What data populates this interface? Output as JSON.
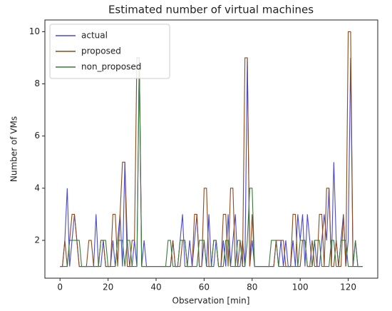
{
  "chart_data": {
    "type": "line",
    "title": "Estimated number of virtual machines",
    "xlabel": "Observation [min]",
    "ylabel": "Number of VMs",
    "x": [
      0,
      1,
      2,
      3,
      4,
      5,
      6,
      7,
      8,
      9,
      10,
      11,
      12,
      13,
      14,
      15,
      16,
      17,
      18,
      19,
      20,
      21,
      22,
      23,
      24,
      25,
      26,
      27,
      28,
      29,
      30,
      31,
      32,
      33,
      34,
      35,
      36,
      37,
      38,
      39,
      40,
      41,
      42,
      43,
      44,
      45,
      46,
      47,
      48,
      49,
      50,
      51,
      52,
      53,
      54,
      55,
      56,
      57,
      58,
      59,
      60,
      61,
      62,
      63,
      64,
      65,
      66,
      67,
      68,
      69,
      70,
      71,
      72,
      73,
      74,
      75,
      76,
      77,
      78,
      79,
      80,
      81,
      82,
      83,
      84,
      85,
      86,
      87,
      88,
      89,
      90,
      91,
      92,
      93,
      94,
      95,
      96,
      97,
      98,
      99,
      100,
      101,
      102,
      103,
      104,
      105,
      106,
      107,
      108,
      109,
      110,
      111,
      112,
      113,
      114,
      115,
      116,
      117,
      118,
      119,
      120,
      121,
      122,
      123,
      124,
      125,
      126
    ],
    "series": [
      {
        "name": "actual",
        "color": "#4a4ad0",
        "values": [
          1,
          1,
          2,
          4,
          1,
          2,
          3,
          2,
          1,
          1,
          1,
          1,
          1,
          1,
          1,
          3,
          1,
          1,
          2,
          1,
          1,
          1,
          2,
          1,
          2,
          3,
          1,
          5,
          2,
          1,
          1,
          2,
          1,
          9,
          1,
          2,
          1,
          1,
          1,
          1,
          1,
          1,
          1,
          1,
          1,
          1,
          1,
          2,
          1,
          1,
          2,
          3,
          1,
          1,
          2,
          1,
          2,
          3,
          1,
          1,
          2,
          1,
          3,
          1,
          1,
          2,
          1,
          1,
          2,
          1,
          3,
          1,
          2,
          3,
          1,
          1,
          2,
          1,
          9,
          1,
          2,
          1,
          1,
          1,
          1,
          1,
          1,
          1,
          1,
          1,
          2,
          1,
          2,
          1,
          2,
          1,
          1,
          2,
          1,
          3,
          2,
          3,
          1,
          3,
          2,
          1,
          2,
          1,
          1,
          2,
          3,
          2,
          4,
          1,
          5,
          2,
          1,
          2,
          3,
          1,
          2,
          9,
          1,
          2,
          1,
          1,
          1
        ]
      },
      {
        "name": "proposed",
        "color": "#8b4a1c",
        "values": [
          1,
          1,
          2,
          1,
          2,
          3,
          3,
          2,
          1,
          1,
          1,
          1,
          2,
          2,
          1,
          1,
          1,
          2,
          2,
          1,
          1,
          1,
          3,
          3,
          1,
          3,
          5,
          5,
          1,
          1,
          2,
          2,
          9,
          9,
          1,
          1,
          1,
          1,
          1,
          1,
          1,
          1,
          1,
          1,
          1,
          1,
          1,
          2,
          1,
          1,
          1,
          2,
          2,
          1,
          1,
          1,
          3,
          3,
          1,
          1,
          4,
          4,
          1,
          1,
          2,
          2,
          1,
          1,
          3,
          3,
          1,
          4,
          4,
          1,
          1,
          2,
          1,
          9,
          9,
          1,
          3,
          1,
          1,
          1,
          1,
          1,
          1,
          1,
          1,
          1,
          2,
          2,
          2,
          2,
          1,
          1,
          1,
          3,
          3,
          1,
          1,
          2,
          2,
          1,
          1,
          2,
          1,
          1,
          3,
          3,
          1,
          4,
          4,
          1,
          1,
          2,
          1,
          1,
          3,
          1,
          10,
          10,
          1,
          1,
          1,
          1,
          1
        ]
      },
      {
        "name": "non_proposed",
        "color": "#3a7a3a",
        "values": [
          1,
          1,
          1,
          1,
          2,
          2,
          2,
          2,
          2,
          1,
          1,
          1,
          1,
          1,
          1,
          1,
          1,
          2,
          2,
          2,
          1,
          1,
          1,
          1,
          2,
          2,
          2,
          1,
          2,
          2,
          1,
          1,
          1,
          9,
          1,
          1,
          1,
          1,
          1,
          1,
          1,
          1,
          1,
          1,
          1,
          2,
          2,
          1,
          1,
          1,
          2,
          2,
          2,
          1,
          1,
          1,
          1,
          1,
          2,
          2,
          2,
          1,
          1,
          1,
          2,
          2,
          1,
          1,
          1,
          2,
          2,
          1,
          1,
          1,
          2,
          2,
          1,
          1,
          2,
          4,
          4,
          1,
          1,
          1,
          1,
          1,
          1,
          1,
          2,
          2,
          2,
          1,
          1,
          1,
          1,
          1,
          1,
          1,
          1,
          1,
          2,
          2,
          2,
          1,
          1,
          1,
          2,
          2,
          2,
          1,
          1,
          1,
          1,
          2,
          2,
          1,
          1,
          2,
          2,
          2,
          1,
          1,
          1,
          2,
          1,
          1,
          1
        ]
      }
    ],
    "xlim": [
      -6.3,
      132.3
    ],
    "xticks": [
      0,
      20,
      40,
      60,
      80,
      100,
      120
    ],
    "ylim": [
      0.55,
      10.45
    ],
    "yticks": [
      2,
      4,
      6,
      8,
      10
    ],
    "legend": "upper left",
    "grid": false
  }
}
